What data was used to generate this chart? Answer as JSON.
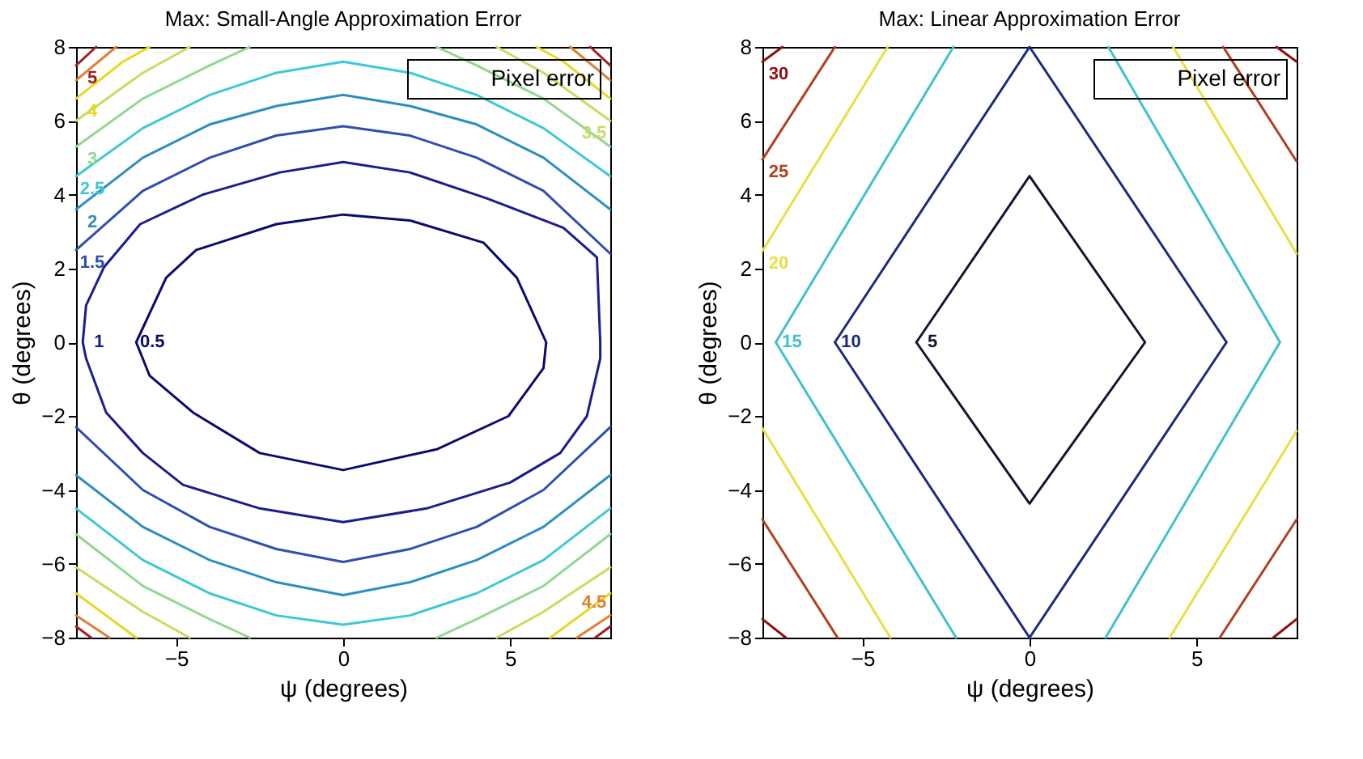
{
  "chart_data": [
    {
      "type": "line",
      "title": "Max: Small-Angle Approximation Error",
      "xlabel": "ψ (degrees)",
      "ylabel": "θ (degrees)",
      "xlim": [
        -8,
        8
      ],
      "ylim": [
        -8,
        8
      ],
      "xticks": [
        -5,
        0,
        5
      ],
      "yticks": [
        -8,
        -6,
        -4,
        -2,
        0,
        2,
        4,
        6,
        8
      ],
      "annotations": [
        "Pixel error"
      ],
      "series": [
        {
          "name": "0.5",
          "color": "#0a0a6e",
          "x": [
            -6.2,
            -5.3,
            -4.4,
            -2,
            0,
            2,
            4.2,
            5.2,
            6.08,
            null,
            6.08,
            6.0,
            4.95,
            2.8,
            0,
            -2.5,
            -4.5,
            -5.8,
            -6.2
          ],
          "values": [
            0,
            1.75,
            2.5,
            3.2,
            3.46,
            3.3,
            2.7,
            1.75,
            0,
            null,
            0,
            -0.7,
            -2.0,
            -2.9,
            -3.46,
            -3.0,
            -1.9,
            -0.9,
            0
          ]
        },
        {
          "name": "1",
          "color": "#1c1c8c",
          "x": [
            -7.8,
            -7.7,
            -7.16,
            -6.08,
            -4.2,
            -1.9,
            0,
            2,
            4.3,
            6.6,
            7.6,
            7.7,
            null,
            7.7,
            7.7,
            7.3,
            6.5,
            5,
            2.5,
            0,
            -2.5,
            -4.8,
            -6,
            -7.1,
            -7.7,
            -7.8
          ],
          "values": [
            0,
            1.0,
            2.04,
            3.2,
            4.0,
            4.6,
            4.88,
            4.6,
            3.9,
            3.1,
            2.3,
            0,
            null,
            0,
            -0.44,
            -2.0,
            -3.0,
            -3.8,
            -4.5,
            -4.87,
            -4.5,
            -3.86,
            -3.0,
            -1.9,
            -0.44,
            0
          ]
        },
        {
          "name": "1.5",
          "color": "#2f4fb0",
          "x": [
            -8,
            -6,
            -4,
            -2,
            0,
            2,
            4,
            6,
            8,
            null,
            8,
            6,
            4,
            2,
            0,
            -2,
            -4,
            -6,
            -8
          ],
          "values": [
            2.5,
            4.1,
            5.0,
            5.6,
            5.85,
            5.6,
            5.0,
            4.1,
            2.4,
            null,
            -2.3,
            -4.0,
            -5.0,
            -5.6,
            -5.95,
            -5.6,
            -5.0,
            -4.0,
            -2.3
          ]
        },
        {
          "name": "2",
          "color": "#2a8fbf",
          "x": [
            -8,
            -6,
            -4,
            -2,
            0,
            2,
            4,
            6,
            8,
            null,
            8,
            6,
            4,
            2,
            0,
            -2,
            -4,
            -6,
            -8
          ],
          "values": [
            3.6,
            5.0,
            5.9,
            6.4,
            6.7,
            6.4,
            5.9,
            5.0,
            3.6,
            null,
            -3.6,
            -5.0,
            -5.9,
            -6.5,
            -6.85,
            -6.5,
            -5.9,
            -5.0,
            -3.6
          ]
        },
        {
          "name": "2.5",
          "color": "#3cc8d8",
          "x": [
            -8,
            -6,
            -4,
            -2,
            0,
            2,
            4,
            6,
            8,
            null,
            8,
            6,
            4,
            2,
            0,
            -2,
            -4,
            -6,
            -8
          ],
          "values": [
            4.5,
            5.8,
            6.7,
            7.3,
            7.6,
            7.3,
            6.7,
            5.8,
            4.5,
            null,
            -4.5,
            -5.9,
            -6.8,
            -7.4,
            -7.65,
            -7.4,
            -6.8,
            -5.9,
            -4.5
          ]
        },
        {
          "name": "3",
          "color": "#8fd890",
          "x": [
            -8,
            -6,
            -4,
            -2.8,
            null,
            2.8,
            4,
            6,
            8,
            null,
            8,
            6,
            4,
            2.8,
            null,
            -2.8,
            -4,
            -6,
            -8
          ],
          "values": [
            5.3,
            6.6,
            7.5,
            8,
            null,
            8,
            7.5,
            6.6,
            5.3,
            null,
            -5.2,
            -6.6,
            -7.5,
            -8,
            null,
            -8,
            -7.5,
            -6.6,
            -5.2
          ]
        },
        {
          "name": "3.5",
          "color": "#c8dc60",
          "x": [
            8,
            6,
            4.6,
            null,
            4.6,
            6,
            8,
            null,
            -8,
            -6,
            -4.6,
            null,
            -4.6,
            -6,
            -8
          ],
          "values": [
            6.0,
            7.3,
            8,
            null,
            -8,
            -7.3,
            -6.1,
            null,
            -6.1,
            -7.3,
            -8,
            null,
            8,
            7.3,
            6.0
          ]
        },
        {
          "name": "4",
          "color": "#e8d820",
          "x": [
            -8,
            -6.6,
            -5.8,
            null,
            5.8,
            6.6,
            8,
            null,
            8,
            6.8,
            6.2,
            null,
            -6.2,
            -6.8,
            -8
          ],
          "values": [
            6.6,
            7.6,
            8,
            null,
            8,
            7.6,
            6.6,
            null,
            -6.8,
            -7.6,
            -8,
            null,
            -8,
            -7.6,
            -6.8
          ]
        },
        {
          "name": "4.5",
          "color": "#e08030",
          "x": [
            8,
            7,
            null,
            6.8,
            8,
            null,
            -8,
            -6.8,
            null,
            -7,
            -8
          ],
          "values": [
            -7.4,
            -8,
            null,
            8,
            7.1,
            null,
            7.1,
            8,
            null,
            -8,
            -7.4
          ]
        },
        {
          "name": "5",
          "color": "#a02020",
          "x": [
            -8,
            -7.4,
            null,
            7.4,
            8,
            null,
            8,
            7.55,
            null,
            -7.55,
            -8
          ],
          "values": [
            7.5,
            8,
            null,
            8,
            7.5,
            null,
            -7.7,
            -8,
            null,
            -8,
            -7.7
          ]
        }
      ]
    },
    {
      "type": "line",
      "title": "Max: Linear Approximation Error",
      "xlabel": "ψ (degrees)",
      "ylabel": "θ (degrees)",
      "xlim": [
        -8,
        8
      ],
      "ylim": [
        -8,
        8
      ],
      "xticks": [
        -5,
        0,
        5
      ],
      "yticks": [
        -8,
        -6,
        -4,
        -2,
        0,
        2,
        4,
        6,
        8
      ],
      "annotations": [
        "Pixel error"
      ],
      "series": [
        {
          "name": "5",
          "color": "#141430",
          "x": [
            -3.39,
            0,
            3.46,
            null,
            3.46,
            0,
            -3.39
          ],
          "values": [
            0,
            4.5,
            0,
            null,
            0,
            -4.37,
            0
          ]
        },
        {
          "name": "10",
          "color": "#1c2a80",
          "x": [
            -5.83,
            0,
            5.9,
            null,
            5.9,
            0,
            -5.83
          ],
          "values": [
            0,
            8,
            0,
            null,
            0,
            -8,
            0
          ]
        },
        {
          "name": "15",
          "color": "#40c0d0",
          "x": [
            -7.6,
            -2.28,
            null,
            -7.6,
            -2.2,
            null,
            2.36,
            7.5,
            null,
            7.5,
            2.28
          ],
          "values": [
            0,
            8,
            null,
            0,
            -8,
            null,
            8,
            0,
            null,
            0,
            -8
          ]
        },
        {
          "name": "20",
          "color": "#e8e040",
          "x": [
            -8,
            -4.25,
            null,
            4.3,
            8,
            null,
            8,
            4.2,
            null,
            -4.17,
            -8
          ],
          "values": [
            2.47,
            8,
            null,
            8,
            2.4,
            null,
            -2.4,
            -8,
            null,
            -8,
            -2.33
          ]
        },
        {
          "name": "25",
          "color": "#b04020",
          "x": [
            -8,
            -5.83,
            null,
            5.8,
            8,
            null,
            8,
            5.7,
            null,
            -5.75,
            -8
          ],
          "values": [
            4.95,
            8,
            null,
            8,
            4.9,
            null,
            -4.8,
            -8,
            null,
            -8,
            -4.8
          ]
        },
        {
          "name": "30",
          "color": "#901010",
          "x": [
            -8,
            -7.4,
            null,
            7.4,
            8,
            null,
            8,
            7.3,
            null,
            -7.3,
            -8
          ],
          "values": [
            7.6,
            8,
            null,
            8,
            7.6,
            null,
            -7.5,
            -8,
            null,
            -8,
            -7.5
          ]
        }
      ]
    }
  ]
}
